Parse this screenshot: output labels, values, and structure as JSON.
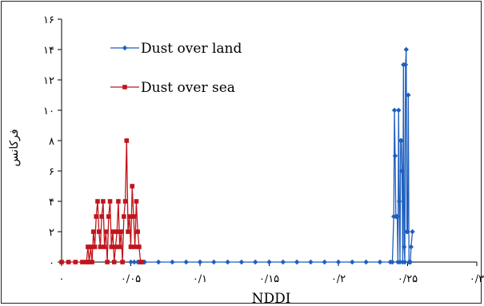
{
  "chart_data": {
    "type": "line",
    "title": "",
    "xlabel": "NDDI",
    "ylabel": "فرکانس",
    "xlim": [
      0,
      0.3
    ],
    "ylim": [
      0,
      16
    ],
    "x_ticks": [
      {
        "value": 0,
        "label": "۰"
      },
      {
        "value": 0.05,
        "label": "۰/۰۵"
      },
      {
        "value": 0.1,
        "label": "۰/۱"
      },
      {
        "value": 0.15,
        "label": "۰/۱۵"
      },
      {
        "value": 0.2,
        "label": "۰/۲"
      },
      {
        "value": 0.25,
        "label": "۰/۲۵"
      },
      {
        "value": 0.3,
        "label": "۰/۳"
      }
    ],
    "y_ticks": [
      {
        "value": 0,
        "label": "۰"
      },
      {
        "value": 2,
        "label": "۲"
      },
      {
        "value": 4,
        "label": "۴"
      },
      {
        "value": 6,
        "label": "۶"
      },
      {
        "value": 8,
        "label": "۸"
      },
      {
        "value": 10,
        "label": "۱۰"
      },
      {
        "value": 12,
        "label": "۱۲"
      },
      {
        "value": 14,
        "label": "۱۴"
      },
      {
        "value": 16,
        "label": "۱۶"
      }
    ],
    "legend_placement": "top-left",
    "grid": false,
    "series": [
      {
        "name": "Dust over land",
        "color": "#1f5fbf",
        "marker": "diamond",
        "points": [
          [
            0.05,
            0
          ],
          [
            0.0525,
            0
          ],
          [
            0.055,
            0
          ],
          [
            0.06,
            0
          ],
          [
            0.07,
            0
          ],
          [
            0.08,
            0
          ],
          [
            0.09,
            0
          ],
          [
            0.1,
            0
          ],
          [
            0.11,
            0
          ],
          [
            0.12,
            0
          ],
          [
            0.13,
            0
          ],
          [
            0.14,
            0
          ],
          [
            0.15,
            0
          ],
          [
            0.16,
            0
          ],
          [
            0.17,
            0
          ],
          [
            0.18,
            0
          ],
          [
            0.19,
            0
          ],
          [
            0.2,
            0
          ],
          [
            0.21,
            0
          ],
          [
            0.22,
            0
          ],
          [
            0.23,
            0
          ],
          [
            0.2375,
            0
          ],
          [
            0.239,
            0
          ],
          [
            0.24,
            3
          ],
          [
            0.2405,
            10
          ],
          [
            0.241,
            7
          ],
          [
            0.2415,
            3
          ],
          [
            0.242,
            3
          ],
          [
            0.2425,
            3
          ],
          [
            0.243,
            0
          ],
          [
            0.2435,
            10
          ],
          [
            0.244,
            4
          ],
          [
            0.2445,
            0
          ],
          [
            0.245,
            8
          ],
          [
            0.2455,
            8
          ],
          [
            0.246,
            6
          ],
          [
            0.2465,
            0
          ],
          [
            0.247,
            13
          ],
          [
            0.2475,
            1
          ],
          [
            0.248,
            0
          ],
          [
            0.2485,
            13
          ],
          [
            0.249,
            14
          ],
          [
            0.2495,
            2
          ],
          [
            0.25,
            2
          ],
          [
            0.2505,
            11
          ],
          [
            0.251,
            0
          ],
          [
            0.2515,
            0
          ],
          [
            0.252,
            0
          ],
          [
            0.2525,
            1
          ],
          [
            0.2535,
            2
          ]
        ]
      },
      {
        "name": "Dust over sea",
        "color": "#c0151c",
        "marker": "square",
        "points": [
          [
            0,
            0
          ],
          [
            0.005,
            0
          ],
          [
            0.01,
            0
          ],
          [
            0.015,
            0
          ],
          [
            0.018,
            0
          ],
          [
            0.019,
            1
          ],
          [
            0.02,
            0
          ],
          [
            0.021,
            1
          ],
          [
            0.022,
            0
          ],
          [
            0.023,
            2
          ],
          [
            0.024,
            1
          ],
          [
            0.025,
            3
          ],
          [
            0.026,
            4
          ],
          [
            0.027,
            2
          ],
          [
            0.028,
            1
          ],
          [
            0.029,
            3
          ],
          [
            0.03,
            4
          ],
          [
            0.031,
            1
          ],
          [
            0.032,
            2
          ],
          [
            0.033,
            0
          ],
          [
            0.034,
            3
          ],
          [
            0.035,
            4
          ],
          [
            0.036,
            1
          ],
          [
            0.037,
            2
          ],
          [
            0.038,
            0
          ],
          [
            0.039,
            1
          ],
          [
            0.04,
            2
          ],
          [
            0.041,
            4
          ],
          [
            0.042,
            1
          ],
          [
            0.043,
            2
          ],
          [
            0.044,
            0
          ],
          [
            0.045,
            3
          ],
          [
            0.046,
            4
          ],
          [
            0.047,
            8
          ],
          [
            0.048,
            2
          ],
          [
            0.049,
            3
          ],
          [
            0.05,
            1
          ],
          [
            0.051,
            5
          ],
          [
            0.052,
            3
          ],
          [
            0.053,
            1
          ],
          [
            0.054,
            4
          ],
          [
            0.055,
            2
          ],
          [
            0.056,
            1
          ],
          [
            0.057,
            0
          ],
          [
            0.058,
            0
          ]
        ]
      }
    ]
  }
}
